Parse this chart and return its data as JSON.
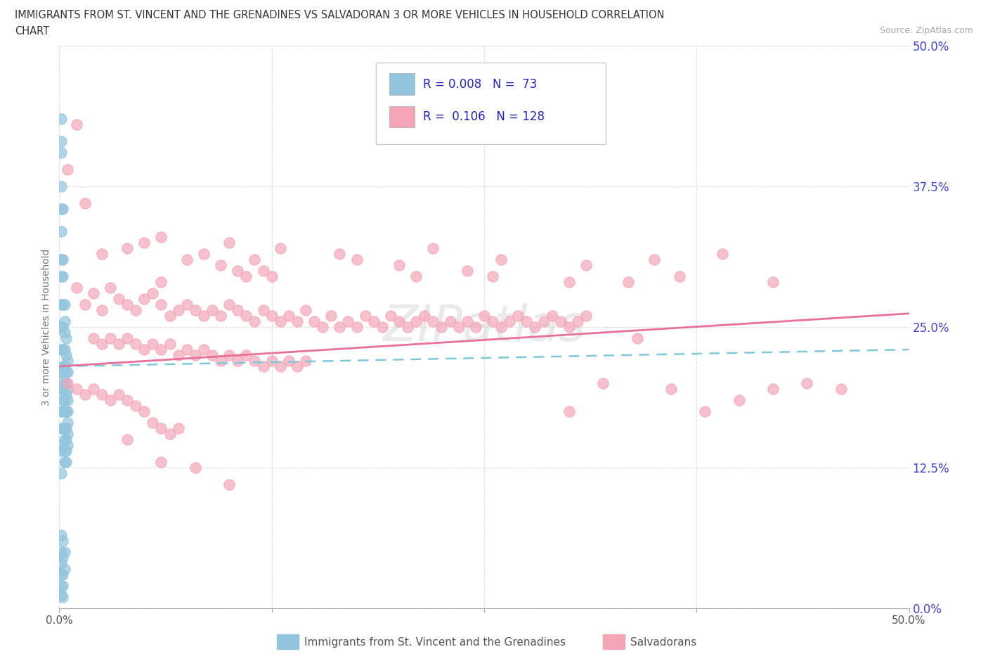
{
  "title_line1": "IMMIGRANTS FROM ST. VINCENT AND THE GRENADINES VS SALVADORAN 3 OR MORE VEHICLES IN HOUSEHOLD CORRELATION",
  "title_line2": "CHART",
  "source_text": "Source: ZipAtlas.com",
  "ylabel": "3 or more Vehicles in Household",
  "xlim": [
    0,
    0.5
  ],
  "ylim": [
    0,
    0.5
  ],
  "blue_color": "#92c5de",
  "pink_color": "#f4a6b8",
  "blue_line_color": "#7ec8d8",
  "pink_line_color": "#e8709a",
  "tick_color": "#4444cc",
  "label_color": "#777777",
  "watermark_color": "#cccccc",
  "r_n_color": "#2222bb",
  "grid_color": "#dddddd",
  "blue_scatter": [
    [
      0.001,
      0.435
    ],
    [
      0.001,
      0.415
    ],
    [
      0.001,
      0.405
    ],
    [
      0.001,
      0.375
    ],
    [
      0.001,
      0.355
    ],
    [
      0.002,
      0.355
    ],
    [
      0.001,
      0.335
    ],
    [
      0.001,
      0.31
    ],
    [
      0.001,
      0.295
    ],
    [
      0.002,
      0.31
    ],
    [
      0.002,
      0.295
    ],
    [
      0.001,
      0.27
    ],
    [
      0.002,
      0.27
    ],
    [
      0.001,
      0.25
    ],
    [
      0.002,
      0.25
    ],
    [
      0.001,
      0.23
    ],
    [
      0.002,
      0.23
    ],
    [
      0.001,
      0.21
    ],
    [
      0.002,
      0.215
    ],
    [
      0.001,
      0.195
    ],
    [
      0.002,
      0.195
    ],
    [
      0.001,
      0.175
    ],
    [
      0.002,
      0.175
    ],
    [
      0.001,
      0.16
    ],
    [
      0.002,
      0.16
    ],
    [
      0.001,
      0.14
    ],
    [
      0.002,
      0.145
    ],
    [
      0.001,
      0.12
    ],
    [
      0.002,
      0.205
    ],
    [
      0.002,
      0.185
    ],
    [
      0.003,
      0.27
    ],
    [
      0.003,
      0.255
    ],
    [
      0.003,
      0.245
    ],
    [
      0.003,
      0.23
    ],
    [
      0.003,
      0.215
    ],
    [
      0.003,
      0.2
    ],
    [
      0.003,
      0.185
    ],
    [
      0.003,
      0.175
    ],
    [
      0.003,
      0.16
    ],
    [
      0.003,
      0.15
    ],
    [
      0.003,
      0.14
    ],
    [
      0.003,
      0.13
    ],
    [
      0.004,
      0.24
    ],
    [
      0.004,
      0.225
    ],
    [
      0.004,
      0.21
    ],
    [
      0.004,
      0.2
    ],
    [
      0.004,
      0.19
    ],
    [
      0.004,
      0.175
    ],
    [
      0.004,
      0.16
    ],
    [
      0.004,
      0.15
    ],
    [
      0.004,
      0.14
    ],
    [
      0.004,
      0.13
    ],
    [
      0.005,
      0.22
    ],
    [
      0.005,
      0.21
    ],
    [
      0.005,
      0.195
    ],
    [
      0.005,
      0.185
    ],
    [
      0.005,
      0.175
    ],
    [
      0.005,
      0.165
    ],
    [
      0.005,
      0.155
    ],
    [
      0.005,
      0.145
    ],
    [
      0.001,
      0.065
    ],
    [
      0.001,
      0.05
    ],
    [
      0.001,
      0.04
    ],
    [
      0.001,
      0.03
    ],
    [
      0.001,
      0.02
    ],
    [
      0.001,
      0.012
    ],
    [
      0.002,
      0.06
    ],
    [
      0.002,
      0.045
    ],
    [
      0.002,
      0.03
    ],
    [
      0.002,
      0.02
    ],
    [
      0.002,
      0.01
    ],
    [
      0.003,
      0.05
    ],
    [
      0.003,
      0.035
    ]
  ],
  "pink_scatter": [
    [
      0.005,
      0.39
    ],
    [
      0.01,
      0.43
    ],
    [
      0.015,
      0.36
    ],
    [
      0.025,
      0.315
    ],
    [
      0.04,
      0.32
    ],
    [
      0.05,
      0.325
    ],
    [
      0.06,
      0.33
    ],
    [
      0.06,
      0.29
    ],
    [
      0.075,
      0.31
    ],
    [
      0.085,
      0.315
    ],
    [
      0.095,
      0.305
    ],
    [
      0.1,
      0.325
    ],
    [
      0.105,
      0.3
    ],
    [
      0.11,
      0.295
    ],
    [
      0.115,
      0.31
    ],
    [
      0.12,
      0.3
    ],
    [
      0.125,
      0.295
    ],
    [
      0.13,
      0.32
    ],
    [
      0.165,
      0.315
    ],
    [
      0.175,
      0.31
    ],
    [
      0.2,
      0.305
    ],
    [
      0.21,
      0.295
    ],
    [
      0.22,
      0.32
    ],
    [
      0.24,
      0.3
    ],
    [
      0.255,
      0.295
    ],
    [
      0.26,
      0.31
    ],
    [
      0.3,
      0.29
    ],
    [
      0.31,
      0.305
    ],
    [
      0.335,
      0.29
    ],
    [
      0.365,
      0.295
    ],
    [
      0.39,
      0.315
    ],
    [
      0.42,
      0.29
    ],
    [
      0.35,
      0.31
    ],
    [
      0.01,
      0.285
    ],
    [
      0.015,
      0.27
    ],
    [
      0.02,
      0.28
    ],
    [
      0.025,
      0.265
    ],
    [
      0.03,
      0.285
    ],
    [
      0.035,
      0.275
    ],
    [
      0.04,
      0.27
    ],
    [
      0.045,
      0.265
    ],
    [
      0.05,
      0.275
    ],
    [
      0.055,
      0.28
    ],
    [
      0.06,
      0.27
    ],
    [
      0.065,
      0.26
    ],
    [
      0.07,
      0.265
    ],
    [
      0.075,
      0.27
    ],
    [
      0.08,
      0.265
    ],
    [
      0.085,
      0.26
    ],
    [
      0.09,
      0.265
    ],
    [
      0.095,
      0.26
    ],
    [
      0.1,
      0.27
    ],
    [
      0.105,
      0.265
    ],
    [
      0.11,
      0.26
    ],
    [
      0.115,
      0.255
    ],
    [
      0.12,
      0.265
    ],
    [
      0.125,
      0.26
    ],
    [
      0.13,
      0.255
    ],
    [
      0.135,
      0.26
    ],
    [
      0.14,
      0.255
    ],
    [
      0.145,
      0.265
    ],
    [
      0.15,
      0.255
    ],
    [
      0.155,
      0.25
    ],
    [
      0.16,
      0.26
    ],
    [
      0.165,
      0.25
    ],
    [
      0.17,
      0.255
    ],
    [
      0.175,
      0.25
    ],
    [
      0.18,
      0.26
    ],
    [
      0.185,
      0.255
    ],
    [
      0.19,
      0.25
    ],
    [
      0.195,
      0.26
    ],
    [
      0.2,
      0.255
    ],
    [
      0.205,
      0.25
    ],
    [
      0.21,
      0.255
    ],
    [
      0.215,
      0.26
    ],
    [
      0.22,
      0.255
    ],
    [
      0.225,
      0.25
    ],
    [
      0.23,
      0.255
    ],
    [
      0.235,
      0.25
    ],
    [
      0.24,
      0.255
    ],
    [
      0.245,
      0.25
    ],
    [
      0.25,
      0.26
    ],
    [
      0.255,
      0.255
    ],
    [
      0.26,
      0.25
    ],
    [
      0.265,
      0.255
    ],
    [
      0.27,
      0.26
    ],
    [
      0.275,
      0.255
    ],
    [
      0.28,
      0.25
    ],
    [
      0.285,
      0.255
    ],
    [
      0.29,
      0.26
    ],
    [
      0.295,
      0.255
    ],
    [
      0.3,
      0.25
    ],
    [
      0.305,
      0.255
    ],
    [
      0.31,
      0.26
    ],
    [
      0.02,
      0.24
    ],
    [
      0.025,
      0.235
    ],
    [
      0.03,
      0.24
    ],
    [
      0.035,
      0.235
    ],
    [
      0.04,
      0.24
    ],
    [
      0.045,
      0.235
    ],
    [
      0.05,
      0.23
    ],
    [
      0.055,
      0.235
    ],
    [
      0.06,
      0.23
    ],
    [
      0.065,
      0.235
    ],
    [
      0.07,
      0.225
    ],
    [
      0.075,
      0.23
    ],
    [
      0.08,
      0.225
    ],
    [
      0.085,
      0.23
    ],
    [
      0.09,
      0.225
    ],
    [
      0.095,
      0.22
    ],
    [
      0.1,
      0.225
    ],
    [
      0.105,
      0.22
    ],
    [
      0.11,
      0.225
    ],
    [
      0.115,
      0.22
    ],
    [
      0.12,
      0.215
    ],
    [
      0.125,
      0.22
    ],
    [
      0.13,
      0.215
    ],
    [
      0.135,
      0.22
    ],
    [
      0.14,
      0.215
    ],
    [
      0.145,
      0.22
    ],
    [
      0.005,
      0.2
    ],
    [
      0.01,
      0.195
    ],
    [
      0.015,
      0.19
    ],
    [
      0.02,
      0.195
    ],
    [
      0.025,
      0.19
    ],
    [
      0.03,
      0.185
    ],
    [
      0.035,
      0.19
    ],
    [
      0.04,
      0.185
    ],
    [
      0.045,
      0.18
    ],
    [
      0.05,
      0.175
    ],
    [
      0.055,
      0.165
    ],
    [
      0.06,
      0.16
    ],
    [
      0.065,
      0.155
    ],
    [
      0.07,
      0.16
    ],
    [
      0.04,
      0.15
    ],
    [
      0.06,
      0.13
    ],
    [
      0.08,
      0.125
    ],
    [
      0.1,
      0.11
    ],
    [
      0.3,
      0.175
    ],
    [
      0.32,
      0.2
    ],
    [
      0.34,
      0.24
    ],
    [
      0.36,
      0.195
    ],
    [
      0.38,
      0.175
    ],
    [
      0.4,
      0.185
    ],
    [
      0.42,
      0.195
    ],
    [
      0.44,
      0.2
    ],
    [
      0.46,
      0.195
    ]
  ]
}
